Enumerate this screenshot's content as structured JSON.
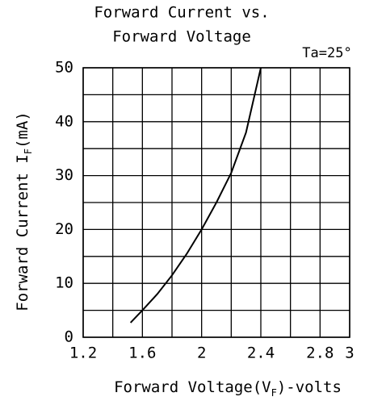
{
  "chart_data": {
    "type": "line",
    "title": "Forward Current vs.",
    "subtitle": "Forward Voltage",
    "annotation": "Ta=25°",
    "ylabel": [
      "Forward Current I",
      "F",
      "(mA)"
    ],
    "xlabel": [
      "Forward Voltage(V",
      "F",
      ")-volts"
    ],
    "x": [
      1.52,
      1.6,
      1.7,
      1.8,
      1.9,
      2.0,
      2.1,
      2.2,
      2.3,
      2.4
    ],
    "series": [
      {
        "color": "#000000",
        "values": [
          2.7,
          5,
          8,
          11.5,
          15.5,
          20,
          25,
          30.5,
          38,
          50
        ]
      }
    ],
    "xlim": [
      1.2,
      3.0
    ],
    "xticks": [
      1.2,
      1.6,
      2.0,
      2.4,
      2.8,
      3.0
    ],
    "xgrid": [
      1.4,
      1.8,
      2.2,
      2.6
    ],
    "ylim": [
      0,
      50
    ],
    "yticks": [
      0,
      10,
      20,
      30,
      40,
      50
    ],
    "ygrid": [
      5,
      15,
      25,
      35,
      45
    ],
    "grid": true
  }
}
